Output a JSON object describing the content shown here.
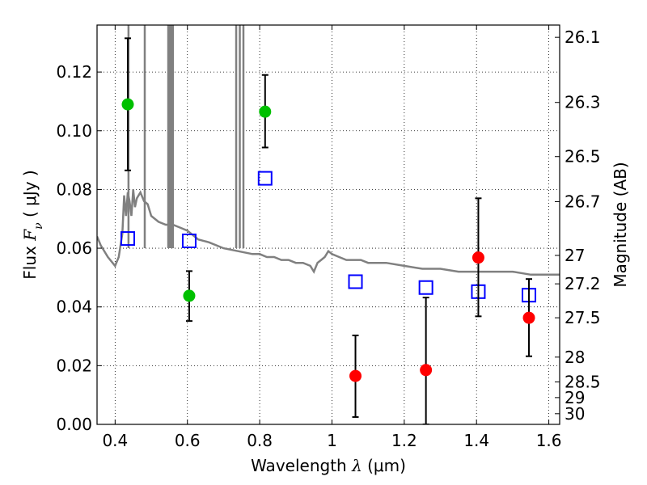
{
  "chart_data": {
    "type": "scatter",
    "title": "",
    "xlabel": {
      "prefix": "Wavelength  ",
      "symbol": "λ",
      "unit": " (μm)"
    },
    "ylabel": {
      "prefix": "Flux  ",
      "symbol": "F",
      "subscript": "ν",
      "unit": "  ( μJy )"
    },
    "y2label": "Magnitude (AB)",
    "xlim": [
      0.35,
      1.63
    ],
    "ylim": [
      0.0,
      0.136
    ],
    "grid": true,
    "x_ticks": [
      {
        "value": 0.4,
        "label": "0.4"
      },
      {
        "value": 0.6,
        "label": "0.6"
      },
      {
        "value": 0.8,
        "label": "0.8"
      },
      {
        "value": 1.0,
        "label": "1"
      },
      {
        "value": 1.2,
        "label": "1.2"
      },
      {
        "value": 1.4,
        "label": "1.4"
      },
      {
        "value": 1.6,
        "label": "1.6"
      }
    ],
    "y_ticks": [
      {
        "value": 0.0,
        "label": "0.00"
      },
      {
        "value": 0.02,
        "label": "0.02"
      },
      {
        "value": 0.04,
        "label": "0.04"
      },
      {
        "value": 0.06,
        "label": "0.06"
      },
      {
        "value": 0.08,
        "label": "0.08"
      },
      {
        "value": 0.1,
        "label": "0.10"
      },
      {
        "value": 0.12,
        "label": "0.12"
      }
    ],
    "magnitude_ticks": [
      {
        "value": 26.1,
        "label": "26.1"
      },
      {
        "value": 26.3,
        "label": "26.3"
      },
      {
        "value": 26.5,
        "label": "26.5"
      },
      {
        "value": 26.7,
        "label": "26.7"
      },
      {
        "value": 27.0,
        "label": "27"
      },
      {
        "value": 27.2,
        "label": "27.2"
      },
      {
        "value": 27.5,
        "label": "27.5"
      },
      {
        "value": 28.0,
        "label": "28"
      },
      {
        "value": 28.5,
        "label": "28.5"
      },
      {
        "value": 29.0,
        "label": "29"
      },
      {
        "value": 30.0,
        "label": "30"
      }
    ],
    "series": [
      {
        "kind": "line",
        "color": "#808080",
        "x": [
          0.35,
          0.36,
          0.38,
          0.4,
          0.41,
          0.42,
          0.425,
          0.43,
          0.435,
          0.44,
          0.445,
          0.45,
          0.455,
          0.46,
          0.47,
          0.48,
          0.49,
          0.5,
          0.52,
          0.54,
          0.56,
          0.58,
          0.6,
          0.63,
          0.66,
          0.7,
          0.74,
          0.78,
          0.8,
          0.82,
          0.84,
          0.86,
          0.88,
          0.9,
          0.92,
          0.94,
          0.95,
          0.96,
          0.97,
          0.98,
          0.99,
          1.0,
          1.02,
          1.04,
          1.06,
          1.08,
          1.1,
          1.15,
          1.2,
          1.25,
          1.3,
          1.35,
          1.4,
          1.45,
          1.5,
          1.55,
          1.6,
          1.63
        ],
        "y": [
          0.064,
          0.061,
          0.057,
          0.054,
          0.057,
          0.065,
          0.078,
          0.071,
          0.079,
          0.076,
          0.071,
          0.08,
          0.074,
          0.077,
          0.079,
          0.076,
          0.075,
          0.071,
          0.069,
          0.068,
          0.068,
          0.067,
          0.066,
          0.063,
          0.062,
          0.06,
          0.059,
          0.058,
          0.058,
          0.057,
          0.057,
          0.056,
          0.056,
          0.055,
          0.055,
          0.054,
          0.052,
          0.055,
          0.056,
          0.057,
          0.059,
          0.058,
          0.057,
          0.056,
          0.056,
          0.056,
          0.055,
          0.055,
          0.054,
          0.053,
          0.053,
          0.052,
          0.052,
          0.052,
          0.052,
          0.051,
          0.051,
          0.051
        ]
      },
      {
        "kind": "spikes",
        "color": "#808080",
        "x": [
          0.437,
          0.482,
          0.547,
          0.551,
          0.556,
          0.56,
          0.735,
          0.745,
          0.755
        ]
      },
      {
        "kind": "model",
        "color": "#0000ff",
        "marker": "square-open",
        "x": [
          0.435,
          0.605,
          0.815,
          1.065,
          1.26,
          1.405,
          1.545
        ],
        "y": [
          0.0633,
          0.0625,
          0.0838,
          0.0486,
          0.0466,
          0.0452,
          0.044
        ]
      },
      {
        "kind": "detection",
        "color": "#00c000",
        "marker": "circle",
        "x": [
          0.435,
          0.605,
          0.815
        ],
        "y": [
          0.109,
          0.0438,
          0.1065
        ],
        "err_low": [
          0.0865,
          0.0352,
          0.0943
        ],
        "err_high": [
          0.1315,
          0.0522,
          0.119
        ]
      },
      {
        "kind": "detection",
        "color": "#ff0000",
        "marker": "circle",
        "x": [
          1.065,
          1.26,
          1.405,
          1.545
        ],
        "y": [
          0.0165,
          0.0185,
          0.0568,
          0.0363
        ],
        "err_low": [
          0.0025,
          0.0,
          0.0368,
          0.0232
        ],
        "err_high": [
          0.0303,
          0.0432,
          0.077,
          0.0495
        ]
      }
    ]
  }
}
